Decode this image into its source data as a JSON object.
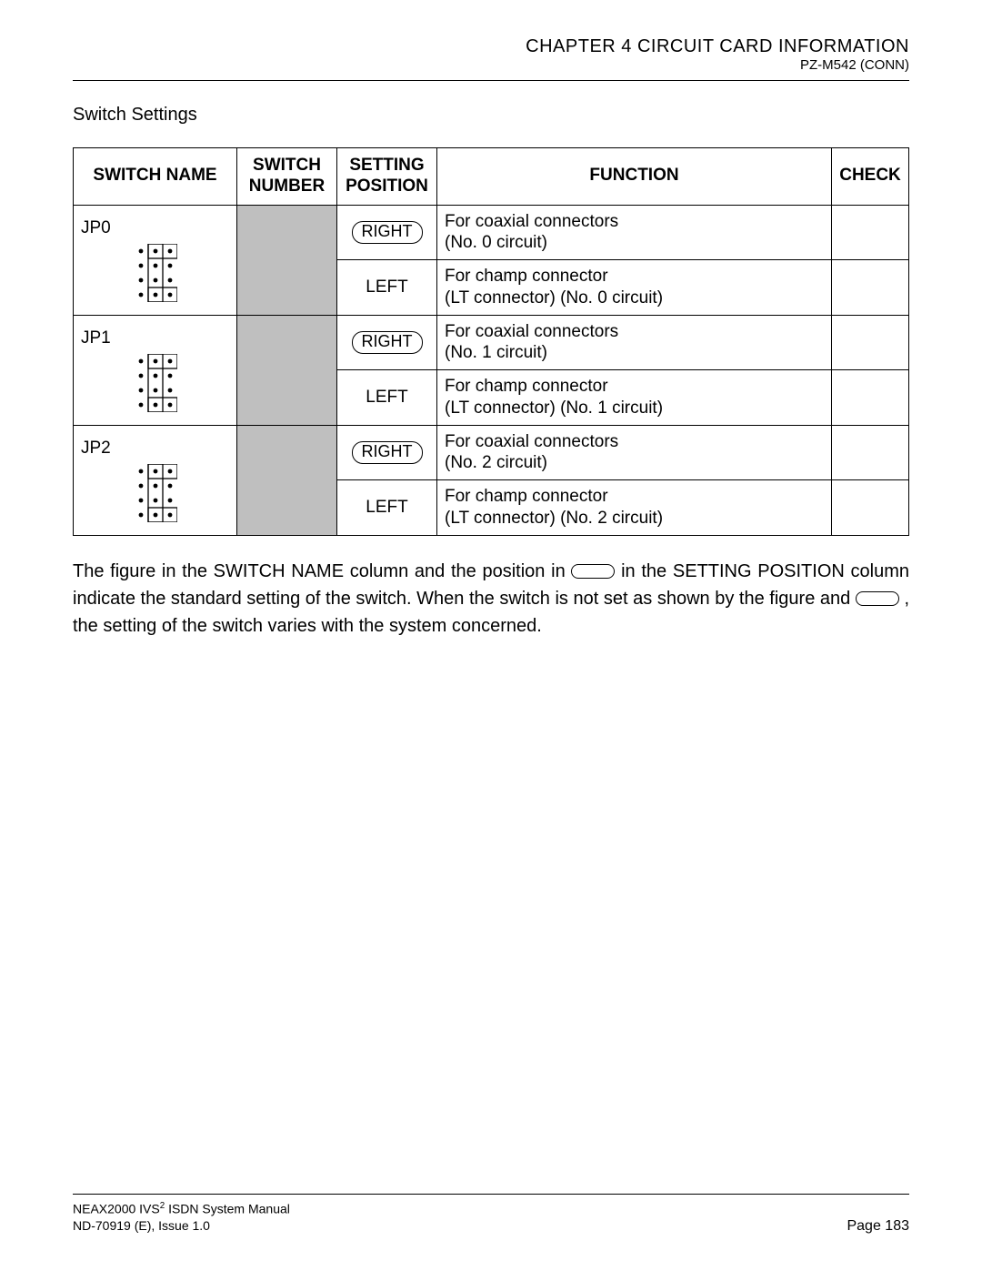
{
  "header": {
    "chapter": "CHAPTER 4  CIRCUIT CARD INFORMATION",
    "subhead": "PZ-M542 (CONN)"
  },
  "section_title": "Switch Settings",
  "table": {
    "columns": {
      "switch_name": "SWITCH NAME",
      "switch_number_l1": "SWITCH",
      "switch_number_l2": "NUMBER",
      "setting_pos_l1": "SETTING",
      "setting_pos_l2": "POSITION",
      "function": "FUNCTION",
      "check": "CHECK"
    },
    "groups": [
      {
        "name": "JP0",
        "rows": [
          {
            "pos": "RIGHT",
            "pill": true,
            "func_l1": "For coaxial connectors",
            "func_l2": "(No. 0 circuit)"
          },
          {
            "pos": "LEFT",
            "pill": false,
            "func_l1": "For champ connector",
            "func_l2": "(LT connector) (No. 0 circuit)"
          }
        ]
      },
      {
        "name": "JP1",
        "rows": [
          {
            "pos": "RIGHT",
            "pill": true,
            "func_l1": "For coaxial connectors",
            "func_l2": "(No. 1 circuit)"
          },
          {
            "pos": "LEFT",
            "pill": false,
            "func_l1": "For champ connector",
            "func_l2": "(LT connector) (No. 1 circuit)"
          }
        ]
      },
      {
        "name": "JP2",
        "rows": [
          {
            "pos": "RIGHT",
            "pill": true,
            "func_l1": "For coaxial connectors",
            "func_l2": "(No. 2 circuit)"
          },
          {
            "pos": "LEFT",
            "pill": false,
            "func_l1": "For champ connector",
            "func_l2": "(LT connector) (No. 2 circuit)"
          }
        ]
      }
    ]
  },
  "note": {
    "p1a": "The figure in the SWITCH NAME column and the position in ",
    "p1b": " in the SETTING POSITION column indicate the standard setting of the switch. When the switch is not set as shown by the figure and ",
    "p1c": ", the setting of the switch varies with the system concerned."
  },
  "footer": {
    "manual_l1a": "NEAX2000 IVS",
    "manual_l1b": " ISDN System Manual",
    "manual_l2": "ND-70919 (E), Issue 1.0",
    "page": "Page 183"
  },
  "style": {
    "grey": "#bfbfbf",
    "jumper": {
      "cols": 3,
      "rows": 4,
      "cell": 16,
      "dot_r": 2.4,
      "stroke": "#000",
      "fill": "#000"
    }
  }
}
